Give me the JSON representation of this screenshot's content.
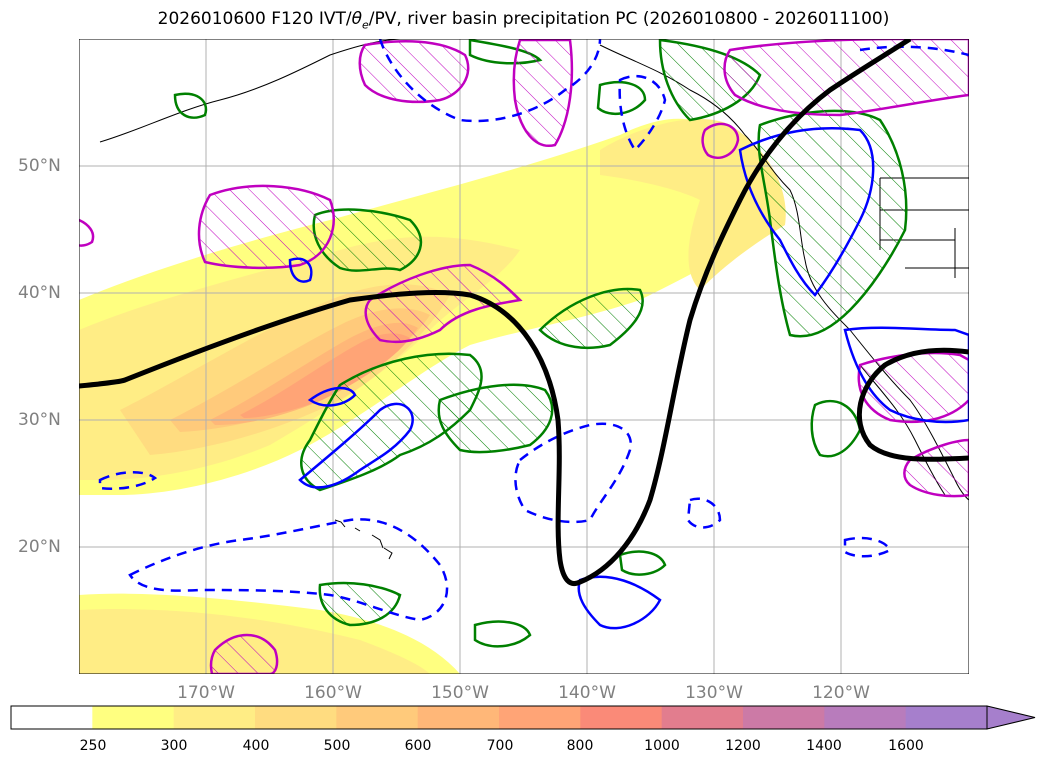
{
  "title": "2026010600 F120 IVT/θe/PV, river basin precipitation PC (2026010800 - 2026011100)",
  "title_parts": {
    "prefix": "2026010600 F120 IVT/",
    "theta": "θ",
    "theta_sub": "e",
    "suffix": "/PV, river basin precipitation PC (2026010800 - 2026011100)"
  },
  "map": {
    "extent": {
      "lon_min": -180,
      "lon_max": -110,
      "lat_min": 10,
      "lat_max": 60
    },
    "lat_labels": [
      {
        "text": "50°N",
        "value": 50
      },
      {
        "text": "40°N",
        "value": 40
      },
      {
        "text": "30°N",
        "value": 30
      },
      {
        "text": "20°N",
        "value": 20
      }
    ],
    "lon_labels": [
      {
        "text": "170°W",
        "value": -170
      },
      {
        "text": "160°W",
        "value": -160
      },
      {
        "text": "150°W",
        "value": -150
      },
      {
        "text": "140°W",
        "value": -140
      },
      {
        "text": "130°W",
        "value": -130
      },
      {
        "text": "120°W",
        "value": -120
      }
    ],
    "grid": true,
    "colors": {
      "grid": "#b0b0b0",
      "coast": "#000000",
      "pv_positive": "#0000ff",
      "theta_e": "#008000",
      "high_pv": "#c000c0",
      "contour_black": "#000000"
    }
  },
  "colorbar": {
    "ticks": [
      "250",
      "300",
      "400",
      "500",
      "600",
      "700",
      "800",
      "1000",
      "1200",
      "1400",
      "1600"
    ],
    "levels": [
      {
        "color": "#ffffff"
      },
      {
        "color": "#ffff80"
      },
      {
        "color": "#ffed85"
      },
      {
        "color": "#ffdc80"
      },
      {
        "color": "#ffca7b"
      },
      {
        "color": "#ffb778"
      },
      {
        "color": "#ffa476"
      },
      {
        "color": "#fa8a78"
      },
      {
        "color": "#e27d8e"
      },
      {
        "color": "#cc7aa6"
      },
      {
        "color": "#b87cbc"
      },
      {
        "color": "#a67fcc"
      }
    ],
    "extend": "max"
  }
}
